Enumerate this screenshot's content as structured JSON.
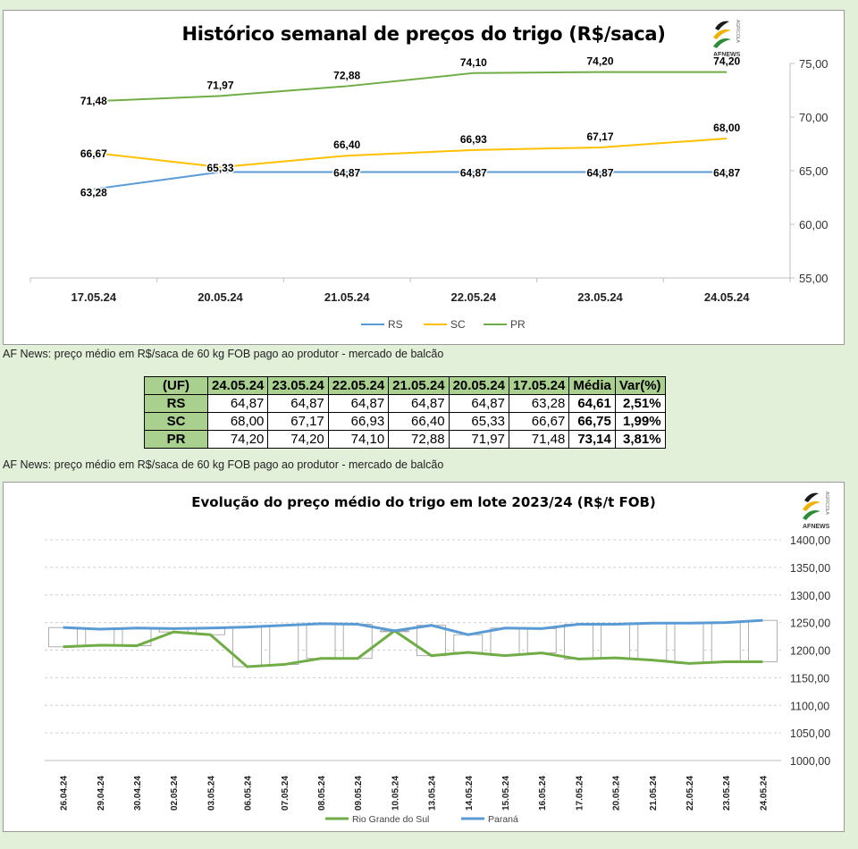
{
  "chart_data": [
    {
      "type": "line",
      "title": "Histórico semanal de preços do trigo (R$/saca)",
      "categories": [
        "17.05.24",
        "20.05.24",
        "21.05.24",
        "22.05.24",
        "23.05.24",
        "24.05.24"
      ],
      "series": [
        {
          "name": "RS",
          "color": "#5b9bd5",
          "values": [
            63.28,
            64.87,
            64.87,
            64.87,
            64.87,
            64.87
          ],
          "labels": [
            "63,28",
            "",
            "64,87",
            "64,87",
            "64,87",
            "64,87"
          ]
        },
        {
          "name": "SC",
          "color": "#ffc000",
          "values": [
            66.67,
            65.33,
            66.4,
            66.93,
            67.17,
            68.0
          ],
          "labels": [
            "66,67",
            "65,33",
            "66,40",
            "66,93",
            "67,17",
            "68,00"
          ]
        },
        {
          "name": "PR",
          "color": "#70ad47",
          "values": [
            71.48,
            71.97,
            72.88,
            74.1,
            74.2,
            74.2
          ],
          "labels": [
            "71,48",
            "71,97",
            "72,88",
            "74,10",
            "74,20",
            "74,20"
          ]
        }
      ],
      "y_ticks": [
        "55,00",
        "60,00",
        "65,00",
        "70,00",
        "75,00"
      ],
      "ylim": [
        55,
        75
      ],
      "y_axis_side": "right",
      "legend": "bottom"
    },
    {
      "type": "line",
      "title": "Evolução do preço médio do trigo em lote 2023/24 (R$/t FOB)",
      "categories": [
        "26.04.24",
        "29.04.24",
        "30.04.24",
        "02.05.24",
        "03.05.24",
        "06.05.24",
        "07.05.24",
        "08.05.24",
        "09.05.24",
        "10.05.24",
        "13.05.24",
        "14.05.24",
        "15.05.24",
        "16.05.24",
        "17.05.24",
        "20.05.24",
        "21.05.24",
        "22.05.24",
        "23.05.24",
        "24.05.24"
      ],
      "series": [
        {
          "name": "Rio Grande do Sul",
          "color": "#70ad47",
          "values": [
            1206,
            1209,
            1208,
            1233,
            1228,
            1170,
            1174,
            1185,
            1185,
            1235,
            1190,
            1196,
            1190,
            1195,
            1184,
            1186,
            1182,
            1176,
            1179,
            1179
          ]
        },
        {
          "name": "Paraná",
          "color": "#5b9bd5",
          "values": [
            1241,
            1238,
            1240,
            1239,
            1240,
            1242,
            1245,
            1248,
            1247,
            1235,
            1245,
            1228,
            1240,
            1239,
            1247,
            1247,
            1249,
            1249,
            1250,
            1254
          ]
        }
      ],
      "y_ticks": [
        "1000,00",
        "1050,00",
        "1100,00",
        "1150,00",
        "1200,00",
        "1250,00",
        "1300,00",
        "1350,00",
        "1400,00"
      ],
      "ylim": [
        1000,
        1400
      ],
      "y_axis_side": "right",
      "legend": "bottom"
    }
  ],
  "logo_text": "AFNEWS",
  "logo_side_text": "AGRÍCOLA",
  "notes": {
    "note1": "AF News: preço médio em R$/saca de 60 kg FOB pago ao produtor - mercado de balcão",
    "note2": "AF News: preço médio em R$/saca de 60 kg FOB pago ao produtor - mercado de balcão"
  },
  "table": {
    "headers": [
      "(UF)",
      "24.05.24",
      "23.05.24",
      "22.05.24",
      "21.05.24",
      "20.05.24",
      "17.05.24",
      "Média",
      "Var(%)"
    ],
    "rows": [
      {
        "uf": "RS",
        "values": [
          "64,87",
          "64,87",
          "64,87",
          "64,87",
          "64,87",
          "63,28"
        ],
        "media": "64,61",
        "var": "2,51%"
      },
      {
        "uf": "SC",
        "values": [
          "68,00",
          "67,17",
          "66,93",
          "66,40",
          "65,33",
          "66,67"
        ],
        "media": "66,75",
        "var": "1,99%"
      },
      {
        "uf": "PR",
        "values": [
          "74,20",
          "74,20",
          "74,10",
          "72,88",
          "71,97",
          "71,48"
        ],
        "media": "73,14",
        "var": "3,81%"
      }
    ]
  }
}
